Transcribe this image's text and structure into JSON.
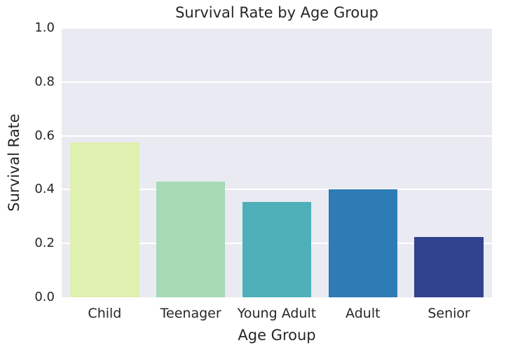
{
  "chart_data": {
    "type": "bar",
    "title": "Survival Rate by Age Group",
    "xlabel": "Age Group",
    "ylabel": "Survival Rate",
    "categories": [
      "Child",
      "Teenager",
      "Young Adult",
      "Adult",
      "Senior"
    ],
    "values": [
      0.575,
      0.43,
      0.355,
      0.4,
      0.225
    ],
    "ylim": [
      0.0,
      1.0
    ],
    "yticks": [
      0.0,
      0.2,
      0.4,
      0.6,
      0.8,
      1.0
    ],
    "grid": true,
    "legend": "none",
    "bar_colors": [
      "#dff0b0",
      "#a5dab4",
      "#4fafb8",
      "#2d7cb5",
      "#30418d"
    ],
    "plot_background": "#eaeaf2",
    "grid_color": "#ffffff",
    "text_color": "#262626"
  }
}
